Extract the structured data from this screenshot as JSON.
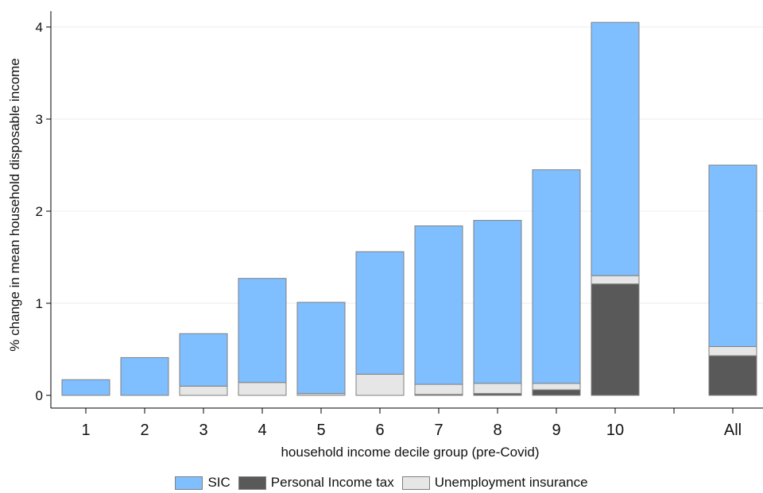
{
  "chart_data": {
    "type": "bar",
    "stacked": true,
    "categories": [
      "1",
      "2",
      "3",
      "4",
      "5",
      "6",
      "7",
      "8",
      "9",
      "10",
      "All"
    ],
    "series": [
      {
        "name": "Personal Income tax",
        "color": "#595959",
        "values": [
          0,
          0,
          0,
          0,
          0,
          0,
          0.01,
          0.02,
          0.06,
          1.21,
          0.43
        ]
      },
      {
        "name": "Unemployment insurance",
        "color": "#e6e6e6",
        "values": [
          0,
          0,
          0.1,
          0.14,
          0.02,
          0.23,
          0.11,
          0.11,
          0.07,
          0.09,
          0.1
        ]
      },
      {
        "name": "SIC",
        "color": "#80bfff",
        "values": [
          0.17,
          0.41,
          0.57,
          1.13,
          0.99,
          1.33,
          1.72,
          1.77,
          2.32,
          2.75,
          1.97
        ]
      }
    ],
    "legend_order": [
      "SIC",
      "Personal Income tax",
      "Unemployment insurance"
    ],
    "xlabel": "household income decile group (pre-Covid)",
    "ylabel": "% change in mean household disposable income",
    "ylim": [
      0,
      4
    ],
    "yticks": [
      0,
      1,
      2,
      3,
      4
    ],
    "grid": true,
    "legend_position": "bottom"
  }
}
